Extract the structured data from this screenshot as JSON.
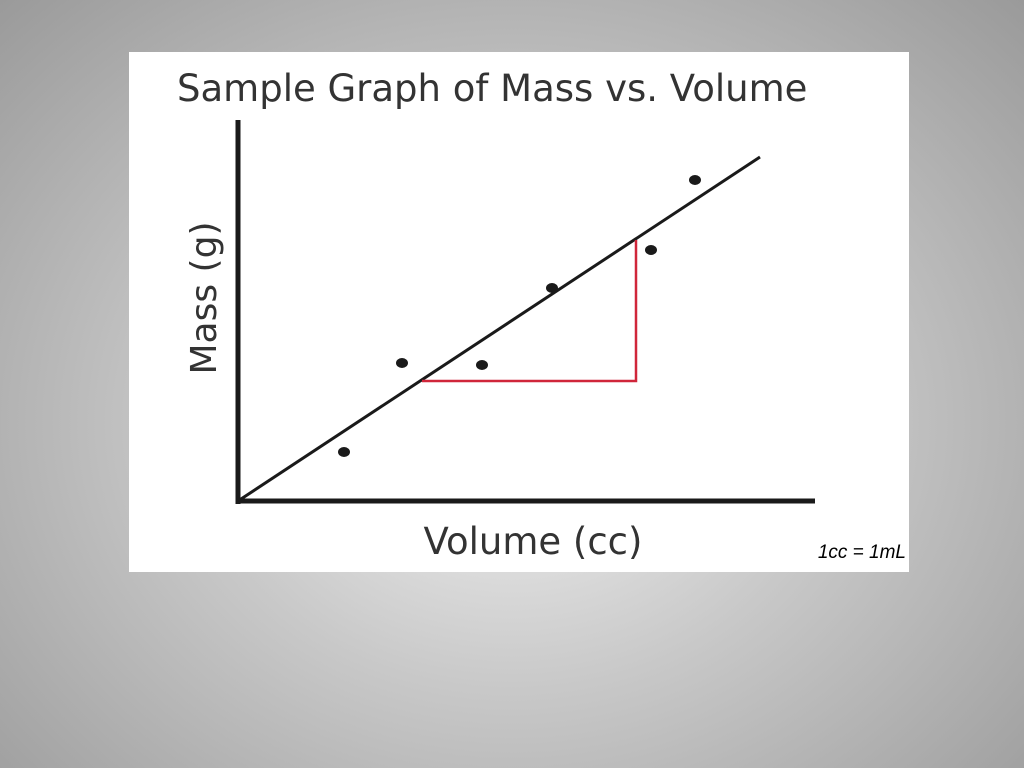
{
  "slide": {
    "graph": {
      "title": "Sample Graph of Mass vs. Volume",
      "y_axis_label": "Mass (g)",
      "x_axis_label": "Volume (cc)"
    },
    "note": "1cc = 1mL"
  }
}
